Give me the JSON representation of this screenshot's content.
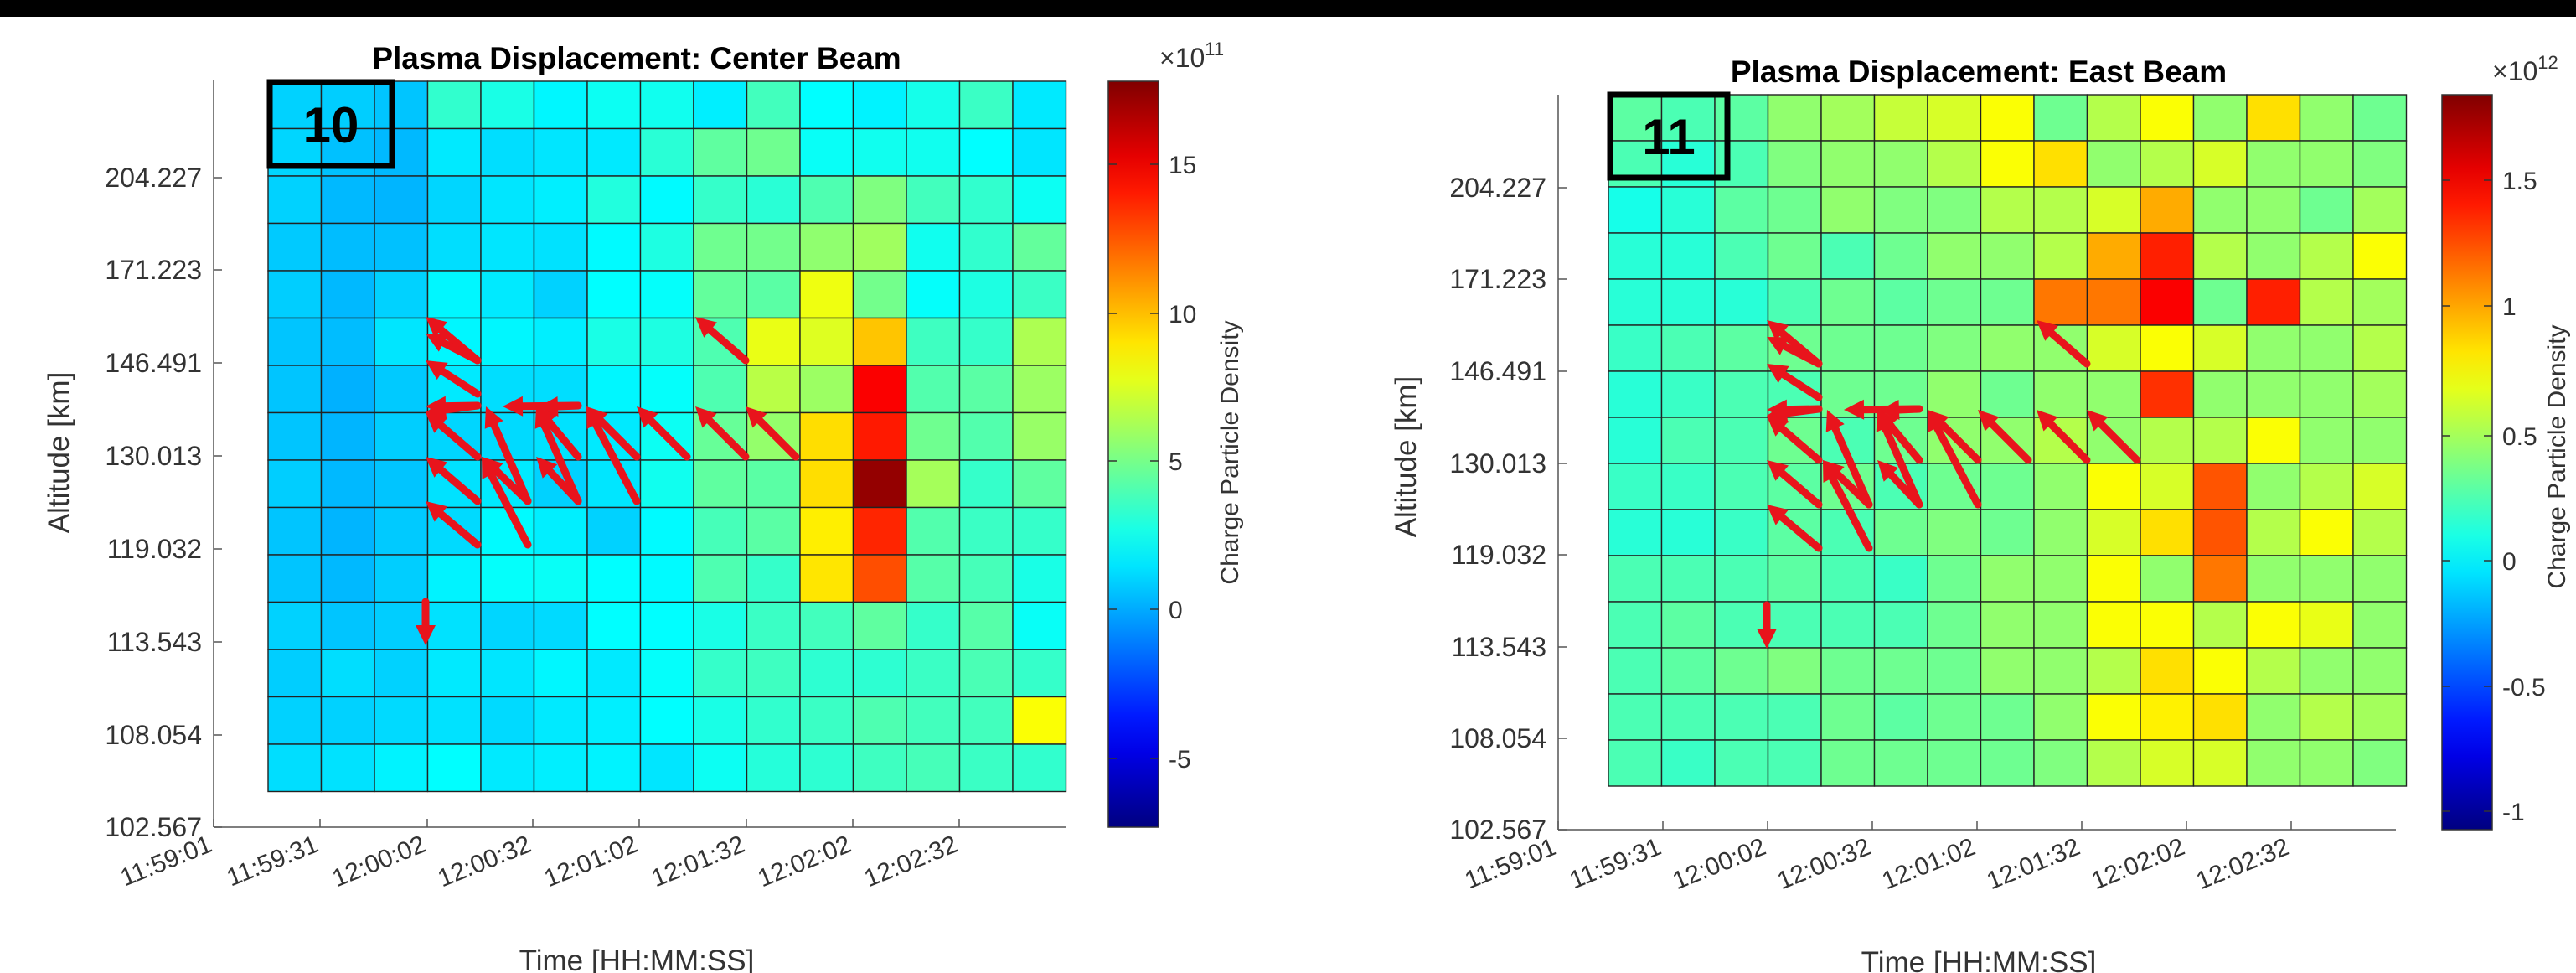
{
  "colormap": "jet",
  "arrow_color": "#e8141c",
  "chart_data": [
    {
      "type": "heatmap",
      "title": "Plasma Displacement: Center Beam",
      "panel_label": "10",
      "xlabel": "Time [HH:MM:SS]",
      "ylabel": "Altitude [km]",
      "x_ticks": [
        "11:59:01",
        "11:59:31",
        "12:00:02",
        "12:00:32",
        "12:01:02",
        "12:01:32",
        "12:02:02",
        "12:02:32"
      ],
      "y_ticks": [
        "204.227",
        "171.223",
        "146.491",
        "130.013",
        "119.032",
        "113.543",
        "108.054",
        "102.567"
      ],
      "colorbar": {
        "label": "Charge Particle Density",
        "exponent": "×10",
        "exponent_power": "11",
        "ticks": [
          "15",
          "10",
          "5",
          "0",
          "-5"
        ],
        "range": [
          -7.3,
          17.5
        ]
      },
      "grid": {
        "rows": 15,
        "cols": 15,
        "values": [
          [
            0.9,
            0.8,
            0.6,
            3.2,
            2.6,
            1.8,
            2.3,
            2.4,
            1.6,
            3.6,
            2.0,
            1.7,
            2.5,
            3.4,
            1.5
          ],
          [
            1.0,
            0.5,
            0.3,
            1.5,
            1.2,
            1.4,
            1.5,
            3.0,
            4.3,
            4.7,
            2.2,
            2.4,
            2.4,
            2.0,
            1.4
          ],
          [
            0.9,
            0.3,
            0.2,
            1.0,
            1.4,
            1.6,
            2.8,
            1.9,
            3.3,
            3.0,
            3.9,
            5.1,
            3.6,
            3.2,
            2.3
          ],
          [
            0.7,
            0.4,
            0.5,
            1.2,
            1.4,
            1.3,
            1.9,
            2.7,
            4.7,
            4.8,
            5.5,
            5.9,
            2.4,
            3.2,
            4.4
          ],
          [
            0.8,
            0.3,
            0.9,
            1.8,
            1.5,
            0.9,
            2.0,
            2.1,
            4.4,
            4.2,
            7.8,
            4.8,
            2.1,
            2.7,
            3.4
          ],
          [
            0.6,
            0.4,
            1.4,
            1.8,
            1.8,
            1.6,
            2.6,
            2.7,
            3.9,
            7.7,
            7.4,
            9.6,
            3.5,
            3.3,
            6.2
          ],
          [
            0.6,
            0.1,
            0.7,
            1.5,
            1.2,
            1.2,
            1.8,
            2.1,
            3.9,
            6.5,
            5.8,
            14.5,
            4.0,
            4.2,
            5.8
          ],
          [
            0.6,
            0.2,
            0.8,
            1.0,
            1.1,
            1.3,
            1.5,
            2.3,
            4.5,
            5.6,
            9.0,
            13.8,
            4.7,
            4.0,
            5.7
          ],
          [
            0.8,
            0.3,
            0.6,
            1.3,
            1.5,
            0.9,
            1.4,
            2.4,
            4.3,
            4.2,
            9.0,
            17.0,
            6.0,
            3.3,
            4.3
          ],
          [
            0.6,
            0.2,
            0.7,
            1.1,
            1.9,
            1.6,
            0.9,
            1.9,
            3.7,
            4.2,
            8.6,
            13.5,
            4.0,
            3.4,
            3.3
          ],
          [
            0.6,
            0.3,
            0.8,
            1.7,
            2.1,
            2.2,
            2.0,
            1.9,
            3.9,
            3.3,
            8.8,
            12.5,
            4.1,
            3.7,
            2.6
          ],
          [
            0.9,
            0.6,
            0.8,
            1.3,
            1.0,
            1.1,
            2.0,
            2.0,
            2.6,
            3.4,
            3.6,
            4.3,
            3.3,
            4.1,
            2.2
          ],
          [
            0.8,
            1.2,
            0.9,
            1.5,
            1.4,
            1.8,
            1.5,
            2.1,
            3.3,
            3.5,
            3.1,
            3.1,
            3.4,
            3.8,
            3.3
          ],
          [
            0.9,
            0.9,
            1.1,
            1.3,
            1.1,
            1.5,
            1.6,
            2.0,
            2.6,
            3.2,
            3.4,
            3.9,
            3.6,
            3.6,
            8.1
          ],
          [
            1.2,
            1.3,
            1.7,
            2.0,
            1.5,
            1.6,
            1.7,
            1.4,
            2.3,
            2.9,
            3.1,
            3.5,
            3.7,
            3.4,
            3.2
          ]
        ]
      }
    },
    {
      "type": "heatmap",
      "title": "Plasma Displacement: East Beam",
      "panel_label": "11",
      "xlabel": "Time [HH:MM:SS]",
      "ylabel": "Altitude [km]",
      "x_ticks": [
        "11:59:01",
        "11:59:31",
        "12:00:02",
        "12:00:32",
        "12:01:02",
        "12:01:32",
        "12:02:02",
        "12:02:32"
      ],
      "y_ticks": [
        "204.227",
        "171.223",
        "146.491",
        "130.013",
        "119.032",
        "113.543",
        "108.054",
        "102.567"
      ],
      "colorbar": {
        "label": "Charge Particle Density",
        "exponent": "×10",
        "exponent_power": "12",
        "ticks": [
          "1.5",
          "1",
          "0.5",
          "0",
          "-0.5",
          "-1"
        ],
        "range": [
          -1.1,
          1.8
        ]
      },
      "grid": {
        "rows": 15,
        "cols": 15,
        "values": [
          [
            0.25,
            0.2,
            0.25,
            0.4,
            0.45,
            0.55,
            0.6,
            0.7,
            0.3,
            0.5,
            0.7,
            0.4,
            0.8,
            0.4,
            0.3
          ],
          [
            0.2,
            0.1,
            0.2,
            0.35,
            0.4,
            0.4,
            0.5,
            0.7,
            0.8,
            0.4,
            0.5,
            0.6,
            0.4,
            0.4,
            0.35
          ],
          [
            0.05,
            0.1,
            0.25,
            0.3,
            0.4,
            0.35,
            0.35,
            0.5,
            0.5,
            0.6,
            0.95,
            0.4,
            0.4,
            0.3,
            0.45
          ],
          [
            0.1,
            0.1,
            0.2,
            0.3,
            0.2,
            0.3,
            0.4,
            0.4,
            0.5,
            0.95,
            1.35,
            0.5,
            0.4,
            0.5,
            0.7
          ],
          [
            0.1,
            0.1,
            0.1,
            0.2,
            0.3,
            0.25,
            0.3,
            0.3,
            1.1,
            1.1,
            1.45,
            0.3,
            1.35,
            0.5,
            0.45
          ],
          [
            0.15,
            0.2,
            0.25,
            0.3,
            0.3,
            0.3,
            0.35,
            0.4,
            0.4,
            0.6,
            0.7,
            0.6,
            0.4,
            0.4,
            0.5
          ],
          [
            0.1,
            0.15,
            0.2,
            0.2,
            0.3,
            0.3,
            0.4,
            0.3,
            0.4,
            0.4,
            1.3,
            0.4,
            0.4,
            0.4,
            0.45
          ],
          [
            0.1,
            0.2,
            0.2,
            0.3,
            0.2,
            0.3,
            0.4,
            0.4,
            0.5,
            0.4,
            0.5,
            0.5,
            0.7,
            0.4,
            0.4
          ],
          [
            0.15,
            0.15,
            0.2,
            0.25,
            0.3,
            0.2,
            0.3,
            0.3,
            0.4,
            0.7,
            0.6,
            1.2,
            0.4,
            0.5,
            0.6
          ],
          [
            0.1,
            0.1,
            0.15,
            0.25,
            0.2,
            0.3,
            0.35,
            0.3,
            0.4,
            0.6,
            0.8,
            1.2,
            0.5,
            0.7,
            0.5
          ],
          [
            0.2,
            0.2,
            0.2,
            0.25,
            0.2,
            0.15,
            0.3,
            0.4,
            0.4,
            0.7,
            0.4,
            1.1,
            0.4,
            0.4,
            0.4
          ],
          [
            0.2,
            0.25,
            0.2,
            0.2,
            0.2,
            0.2,
            0.3,
            0.4,
            0.4,
            0.7,
            0.7,
            0.5,
            0.7,
            0.65,
            0.4
          ],
          [
            0.2,
            0.25,
            0.3,
            0.35,
            0.3,
            0.3,
            0.3,
            0.4,
            0.4,
            0.5,
            0.8,
            0.7,
            0.5,
            0.4,
            0.4
          ],
          [
            0.2,
            0.2,
            0.2,
            0.2,
            0.3,
            0.25,
            0.3,
            0.3,
            0.4,
            0.7,
            0.75,
            0.8,
            0.4,
            0.5,
            0.45
          ],
          [
            0.2,
            0.15,
            0.2,
            0.2,
            0.3,
            0.3,
            0.3,
            0.3,
            0.35,
            0.5,
            0.6,
            0.6,
            0.4,
            0.4,
            0.35
          ]
        ]
      }
    }
  ]
}
